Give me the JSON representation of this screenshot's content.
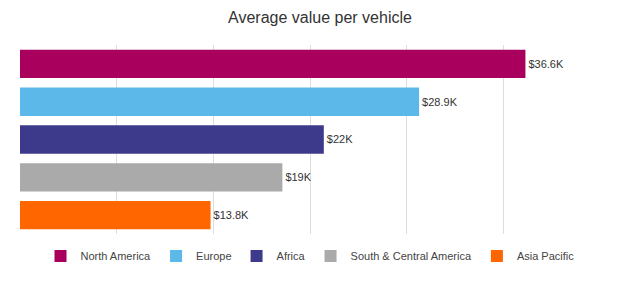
{
  "chart_data": {
    "type": "bar",
    "orientation": "horizontal",
    "title": "Average value per vehicle",
    "categories": [
      "North America",
      "Europe",
      "Africa",
      "South & Central America",
      "Asia Pacific"
    ],
    "values": [
      36.6,
      28.9,
      22.0,
      19.0,
      13.8
    ],
    "value_labels": [
      "$36.6K",
      "$28.9K",
      "$22K",
      "$19K",
      "$13.8K"
    ],
    "colors": [
      "#A8005C",
      "#5BB8E8",
      "#3D3A8C",
      "#AAAAAA",
      "#FF6600"
    ],
    "xlim": [
      0,
      42
    ],
    "xticks": [
      0,
      7,
      14,
      21,
      28,
      35,
      42
    ],
    "grid": true,
    "tick_labels": false,
    "data_labels": true,
    "legend": "bottom"
  }
}
